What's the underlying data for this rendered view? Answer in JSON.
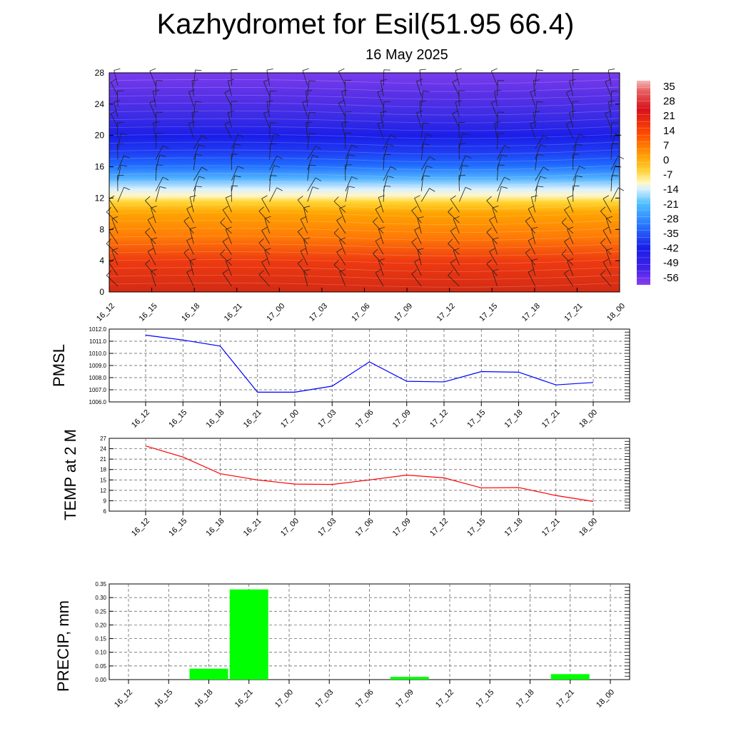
{
  "header": {
    "title": "Kazhydromet for Esil(51.95 66.4)",
    "subtitle": "16 May 2025"
  },
  "chart_data": [
    {
      "type": "heatmap",
      "name": "height-time-temperature-section",
      "x_ticks": [
        "16_12",
        "16_15",
        "16_18",
        "16_21",
        "17_00",
        "17_03",
        "17_06",
        "17_09",
        "17_12",
        "17_15",
        "17_18",
        "17_21",
        "18_00"
      ],
      "y_ticks": [
        0,
        4,
        8,
        12,
        16,
        20,
        24,
        28
      ],
      "ylim": [
        0,
        28
      ],
      "colorbar": {
        "labels": [
          "35",
          "28",
          "21",
          "14",
          "7",
          "0",
          "-7",
          "-14",
          "-21",
          "-28",
          "-35",
          "-42",
          "-49",
          "-56"
        ],
        "range": [
          -60,
          38
        ]
      },
      "overlay": "wind barbs"
    },
    {
      "type": "line",
      "name": "pmsl",
      "ylabel": "PMSL",
      "x": [
        "16_12",
        "16_15",
        "16_18",
        "16_21",
        "17_00",
        "17_03",
        "17_06",
        "17_09",
        "17_12",
        "17_15",
        "17_18",
        "17_21",
        "18_00"
      ],
      "values": [
        1011.5,
        1011.1,
        1010.6,
        1006.8,
        1006.8,
        1007.3,
        1009.3,
        1007.7,
        1007.65,
        1008.5,
        1008.45,
        1007.4,
        1007.6
      ],
      "ylim": [
        1006.0,
        1012.0
      ],
      "y_ticks": [
        "1006.0",
        "1007.0",
        "1008.0",
        "1009.0",
        "1010.0",
        "1011.0",
        "1012.0"
      ],
      "color": "#0000ff",
      "grid": true
    },
    {
      "type": "line",
      "name": "temp-2m",
      "ylabel": "TEMP at 2 M",
      "x": [
        "16_12",
        "16_15",
        "16_18",
        "16_21",
        "17_00",
        "17_03",
        "17_06",
        "17_09",
        "17_12",
        "17_15",
        "17_18",
        "17_21",
        "18_00"
      ],
      "values": [
        24.8,
        21.6,
        16.8,
        15.0,
        13.8,
        13.7,
        15.0,
        16.4,
        15.6,
        12.7,
        12.8,
        10.5,
        8.8
      ],
      "ylim": [
        6,
        27
      ],
      "y_ticks": [
        "6",
        "9",
        "12",
        "15",
        "18",
        "21",
        "24",
        "27"
      ],
      "color": "#ff0000",
      "grid": true
    },
    {
      "type": "bar",
      "name": "precip",
      "ylabel": "PRECIP, mm",
      "categories": [
        "16_12",
        "16_15",
        "16_18",
        "16_21",
        "17_00",
        "17_03",
        "17_06",
        "17_09",
        "17_12",
        "17_15",
        "17_18",
        "17_21",
        "18_00"
      ],
      "values": [
        0,
        0,
        0.04,
        0.33,
        0,
        0,
        0,
        0.01,
        0,
        0,
        0,
        0.02,
        0
      ],
      "ylim": [
        0,
        0.35
      ],
      "y_ticks": [
        "0.00",
        "0.05",
        "0.10",
        "0.15",
        "0.20",
        "0.25",
        "0.30",
        "0.35"
      ],
      "color": "#00ff00",
      "grid": true
    }
  ]
}
